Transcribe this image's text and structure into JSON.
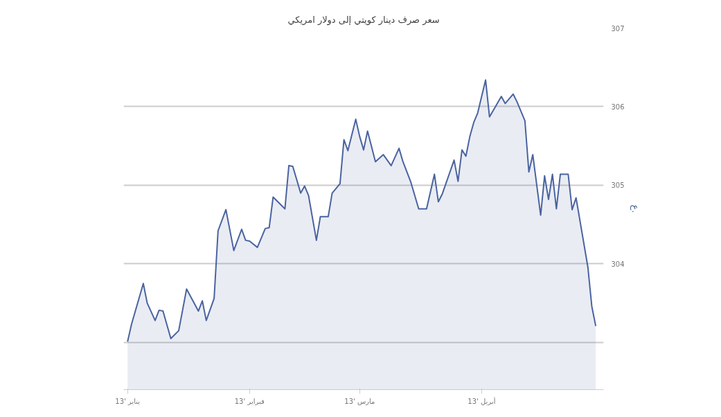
{
  "chart_data": {
    "type": "area",
    "title": "سعر صرف دينار كويتي إلى دولار امريكي",
    "ylabel": "ع.",
    "x": [
      "2013-01-01",
      "2013-01-02",
      "2013-01-05",
      "2013-01-06",
      "2013-01-08",
      "2013-01-09",
      "2013-01-10",
      "2013-01-12",
      "2013-01-14",
      "2013-01-16",
      "2013-01-19",
      "2013-01-20",
      "2013-01-21",
      "2013-01-23",
      "2013-01-24",
      "2013-01-26",
      "2013-01-28",
      "2013-01-30",
      "2013-01-31",
      "2013-02-01",
      "2013-02-03",
      "2013-02-05",
      "2013-02-06",
      "2013-02-07",
      "2013-02-10",
      "2013-02-11",
      "2013-02-12",
      "2013-02-14",
      "2013-02-15",
      "2013-02-16",
      "2013-02-18",
      "2013-02-19",
      "2013-02-21",
      "2013-02-22",
      "2013-02-24",
      "2013-02-25",
      "2013-02-26",
      "2013-02-28",
      "2013-03-01",
      "2013-03-02",
      "2013-03-03",
      "2013-03-05",
      "2013-03-07",
      "2013-03-09",
      "2013-03-11",
      "2013-03-12",
      "2013-03-14",
      "2013-03-16",
      "2013-03-18",
      "2013-03-20",
      "2013-03-21",
      "2013-03-22",
      "2013-03-25",
      "2013-03-26",
      "2013-03-27",
      "2013-03-28",
      "2013-03-29",
      "2013-03-30",
      "2013-03-31",
      "2013-04-02",
      "2013-04-03",
      "2013-04-06",
      "2013-04-07",
      "2013-04-09",
      "2013-04-10",
      "2013-04-12",
      "2013-04-13",
      "2013-04-14",
      "2013-04-16",
      "2013-04-17",
      "2013-04-18",
      "2013-04-19",
      "2013-04-20",
      "2013-04-21",
      "2013-04-23",
      "2013-04-24",
      "2013-04-25",
      "2013-04-28",
      "2013-04-29",
      "2013-04-30"
    ],
    "series": [
      {
        "color": "#4a63a0",
        "values": [
          303.01,
          303.23,
          303.75,
          303.5,
          303.28,
          303.41,
          303.4,
          303.05,
          303.15,
          303.68,
          303.4,
          303.53,
          303.28,
          303.56,
          304.42,
          304.69,
          304.17,
          304.44,
          304.3,
          304.29,
          304.21,
          304.45,
          304.46,
          304.85,
          304.7,
          305.25,
          305.24,
          304.9,
          304.99,
          304.87,
          304.3,
          304.6,
          304.6,
          304.9,
          305.02,
          305.58,
          305.44,
          305.84,
          305.62,
          305.45,
          305.69,
          305.3,
          305.39,
          305.25,
          305.47,
          305.3,
          305.04,
          304.7,
          304.7,
          305.14,
          304.79,
          304.89,
          305.32,
          305.05,
          305.45,
          305.37,
          305.62,
          305.8,
          305.92,
          306.34,
          305.87,
          306.13,
          306.04,
          306.16,
          306.06,
          305.82,
          305.17,
          305.39,
          304.62,
          305.12,
          304.82,
          305.14,
          304.7,
          305.14,
          305.14,
          304.69,
          304.84,
          303.96,
          303.46,
          303.21
        ]
      }
    ],
    "xlim": [
      "2012-12-31",
      "2013-05-02"
    ],
    "xticks": [
      {
        "value": "2013-01-01",
        "label": "يناير '13"
      },
      {
        "value": "2013-02-01",
        "label": "فبراير '13"
      },
      {
        "value": "2013-03-01",
        "label": "مارس '13"
      },
      {
        "value": "2013-04-01",
        "label": "أبريل '13"
      }
    ],
    "ylim": [
      302.4,
      307
    ],
    "yticks": [
      {
        "value": 303,
        "label": null
      },
      304,
      305,
      306,
      307
    ],
    "grid": "y"
  }
}
